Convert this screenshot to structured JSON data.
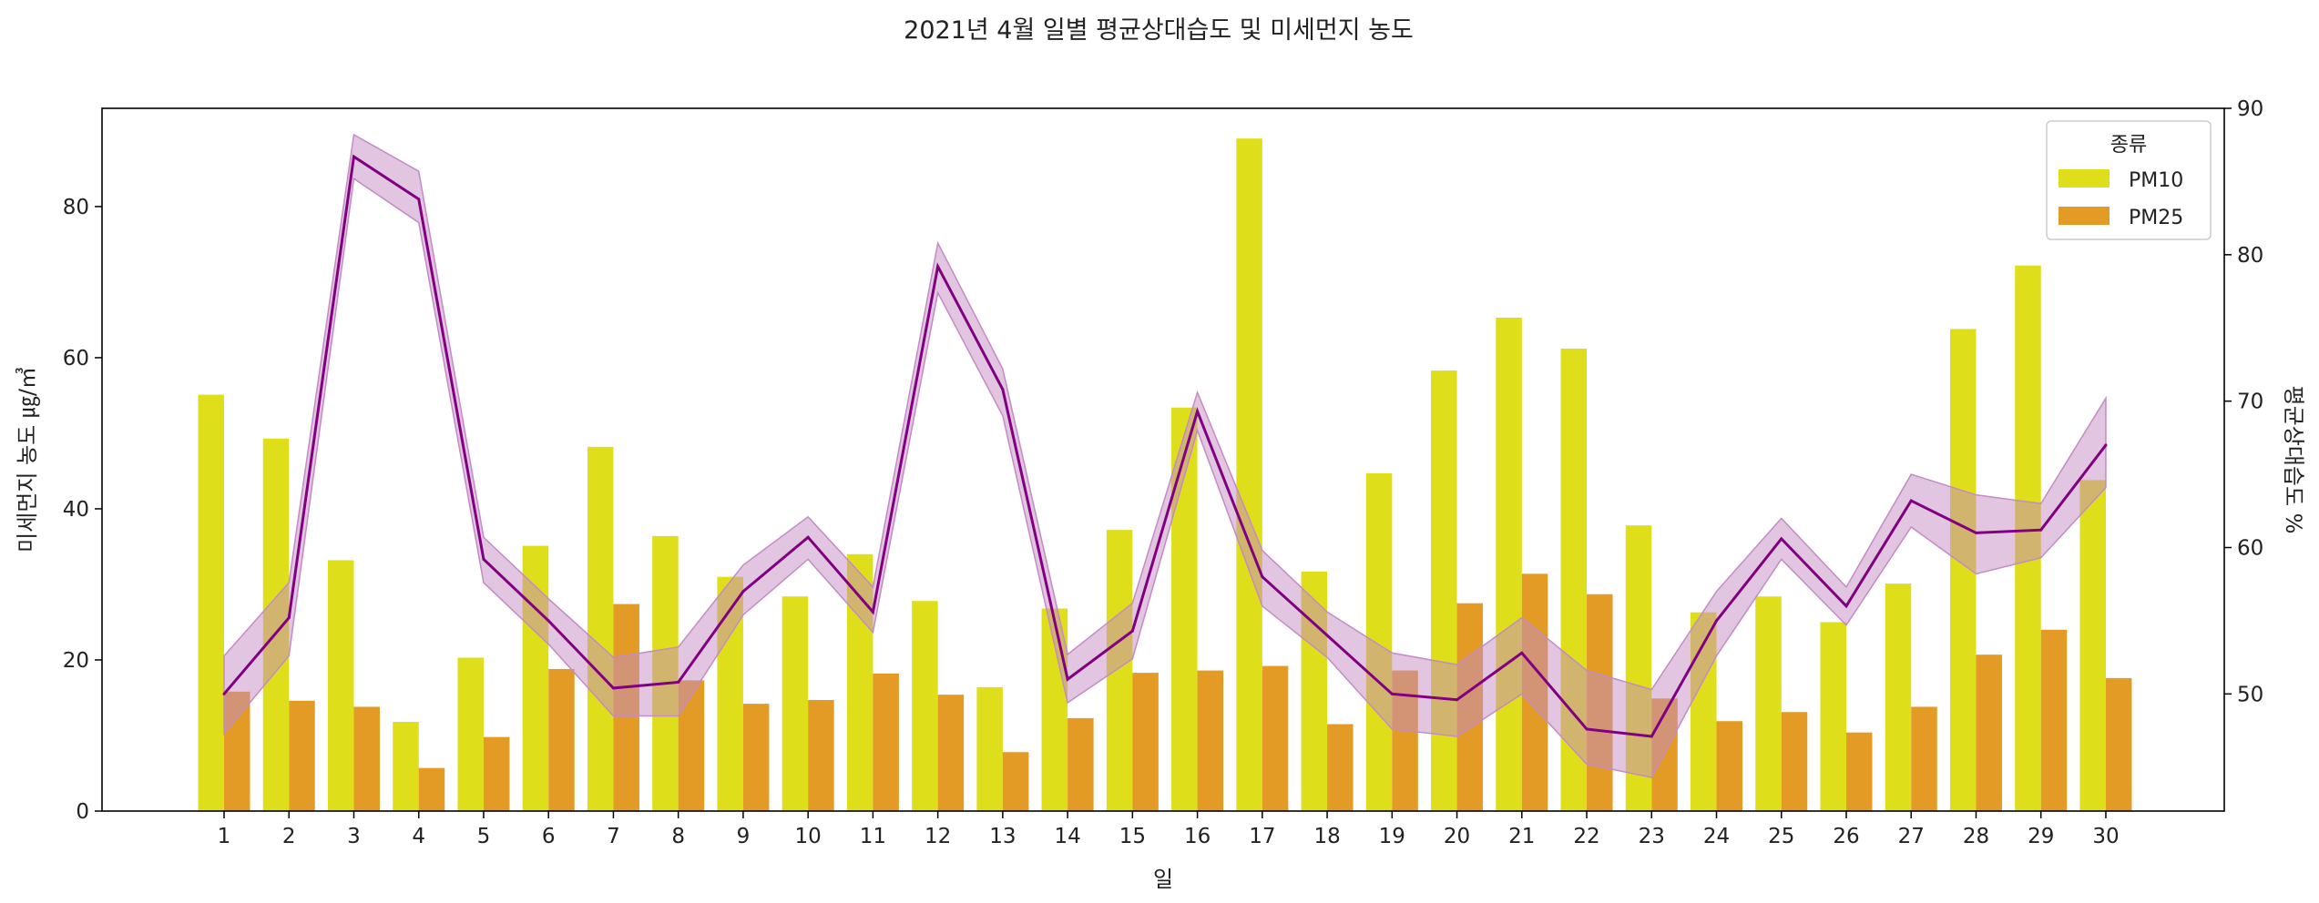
{
  "chart_data": {
    "type": "bar+line",
    "title": "2021년 4월 일별 평균상대습도 및 미세먼지 농도",
    "xlabel": "일",
    "ylabel_left": "미세먼지 농도 ㎍/㎥",
    "ylabel_right": "평균상대습도 %",
    "categories": [
      "1",
      "2",
      "3",
      "4",
      "5",
      "6",
      "7",
      "8",
      "9",
      "10",
      "11",
      "12",
      "13",
      "14",
      "15",
      "16",
      "17",
      "18",
      "19",
      "20",
      "21",
      "22",
      "23",
      "24",
      "25",
      "26",
      "27",
      "28",
      "29",
      "30"
    ],
    "ylim_left": [
      0,
      93
    ],
    "yticks_left": [
      0,
      20,
      40,
      60,
      80
    ],
    "ylim_right": [
      42,
      90
    ],
    "yticks_right": [
      50,
      60,
      70,
      80,
      90
    ],
    "grid": false,
    "legend": {
      "title": "종류",
      "placement": "top-right"
    },
    "series": [
      {
        "name": "PM10",
        "axis": "left",
        "color": "#dede1a",
        "values": [
          55.1,
          49.3,
          33.2,
          11.8,
          20.3,
          35.1,
          48.2,
          36.4,
          31.0,
          28.4,
          34.0,
          27.8,
          16.4,
          26.8,
          37.2,
          53.4,
          89.0,
          31.7,
          44.7,
          58.3,
          65.3,
          61.2,
          37.8,
          26.3,
          28.4,
          25.0,
          30.1,
          63.8,
          72.2,
          43.8
        ]
      },
      {
        "name": "PM25",
        "axis": "left",
        "color": "#e39b26",
        "values": [
          15.8,
          14.6,
          13.8,
          5.7,
          9.8,
          18.8,
          27.4,
          17.3,
          14.2,
          14.7,
          18.2,
          15.4,
          7.8,
          12.3,
          18.3,
          18.6,
          19.2,
          11.5,
          18.6,
          27.5,
          31.4,
          28.7,
          14.9,
          11.9,
          13.1,
          10.4,
          13.8,
          20.7,
          24.0,
          17.6
        ]
      },
      {
        "name": "평균상대습도",
        "axis": "right",
        "color": "#800080",
        "band_color": "#c48bc4",
        "values": [
          50.0,
          55.2,
          86.7,
          83.8,
          59.2,
          55.0,
          50.4,
          50.8,
          57.0,
          60.7,
          55.6,
          79.2,
          70.8,
          51.0,
          54.3,
          69.3,
          58.0,
          54.0,
          50.0,
          49.6,
          52.8,
          47.6,
          47.1,
          55.0,
          60.6,
          56.0,
          63.2,
          61.0,
          61.2,
          67.0
        ],
        "band_lower": [
          47.3,
          52.6,
          85.2,
          82.2,
          57.6,
          53.4,
          48.5,
          48.5,
          55.4,
          59.2,
          54.2,
          77.4,
          69.0,
          49.4,
          52.4,
          68.0,
          56.0,
          52.5,
          47.6,
          47.1,
          50.0,
          45.2,
          44.3,
          52.6,
          59.2,
          54.7,
          61.4,
          58.2,
          59.3,
          64.1
        ],
        "band_upper": [
          52.6,
          57.6,
          88.2,
          85.7,
          60.7,
          56.5,
          52.5,
          53.2,
          58.8,
          62.1,
          57.3,
          80.8,
          72.2,
          52.7,
          56.2,
          70.6,
          59.8,
          55.6,
          52.8,
          52.0,
          55.2,
          51.6,
          50.3,
          57.0,
          62.0,
          57.3,
          65.0,
          63.6,
          63.0,
          70.2
        ]
      }
    ]
  }
}
